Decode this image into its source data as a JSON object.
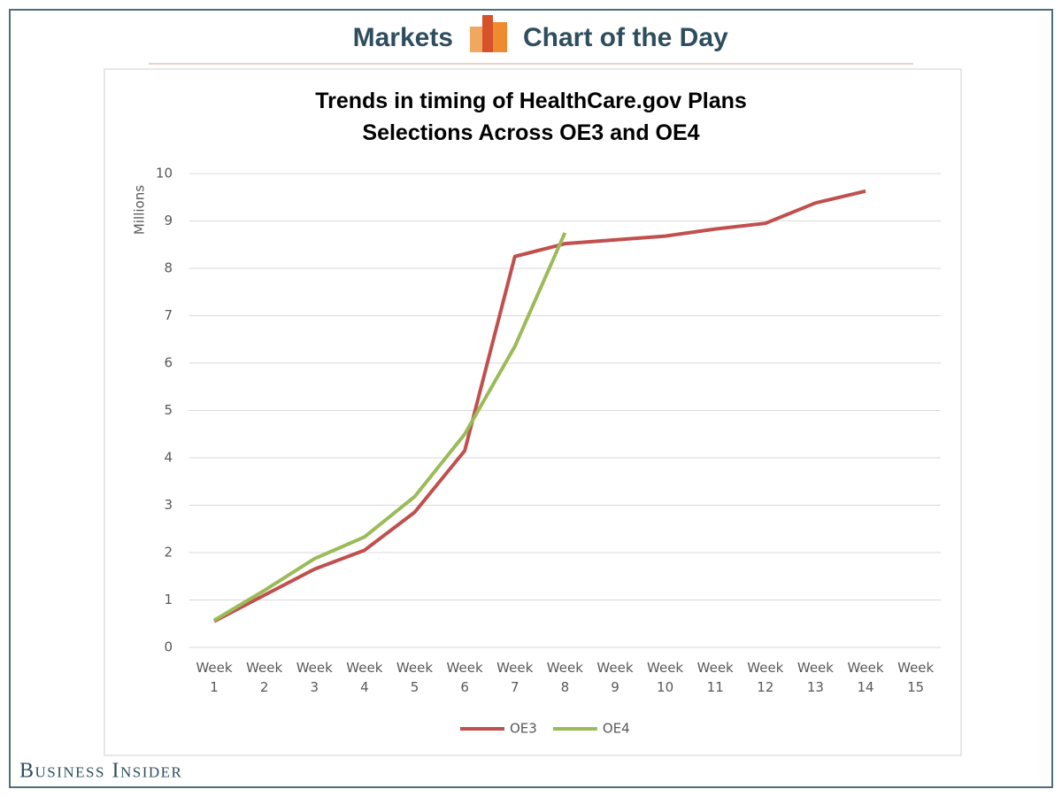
{
  "header": {
    "left": "Markets",
    "right": "Chart of the Day"
  },
  "footer": "Business Insider",
  "chart_data": {
    "type": "line",
    "title": "Trends in timing of HealthCare.gov Plans Selections Across OE3 and OE4",
    "y_label": "Millions",
    "categories": [
      "Week 1",
      "Week 2",
      "Week 3",
      "Week 4",
      "Week 5",
      "Week 6",
      "Week 7",
      "Week 8",
      "Week 9",
      "Week 10",
      "Week 11",
      "Week 12",
      "Week 13",
      "Week 14",
      "Week 15"
    ],
    "series": [
      {
        "name": "OE3",
        "color": "#c0504d",
        "values": [
          0.55,
          1.1,
          1.65,
          2.05,
          2.85,
          4.15,
          8.25,
          8.52,
          8.6,
          8.68,
          8.83,
          8.95,
          9.38,
          9.63,
          null
        ]
      },
      {
        "name": "OE4",
        "color": "#9bbb59",
        "values": [
          0.57,
          1.2,
          1.87,
          2.33,
          3.18,
          4.5,
          6.35,
          8.75,
          null,
          null,
          null,
          null,
          null,
          null,
          null
        ]
      }
    ],
    "ylim": [
      0,
      10
    ],
    "yticks": [
      0,
      1,
      2,
      3,
      4,
      5,
      6,
      7,
      8,
      9,
      10
    ],
    "grid": true,
    "legend": "bottom"
  }
}
